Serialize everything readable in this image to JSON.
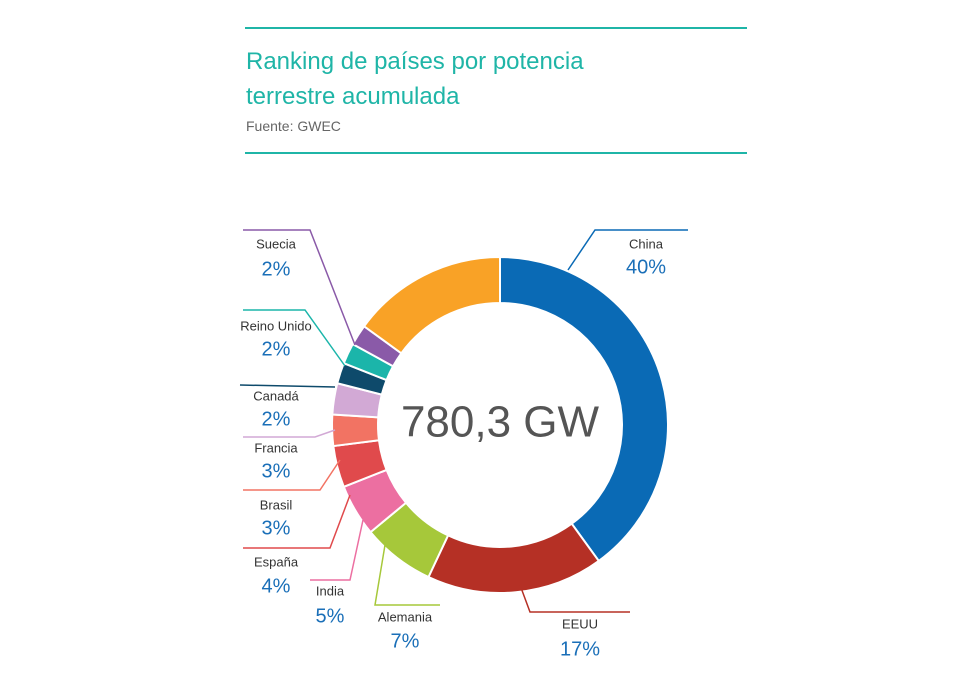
{
  "chart_data": {
    "type": "pie",
    "donut": true,
    "title": "Ranking de países por potencia terrestre acumulada",
    "subtitle": "Fuente: GWEC",
    "center_label": "780,3 GW",
    "categories": [
      "China",
      "EEUU",
      "Alemania",
      "India",
      "España",
      "Brasil",
      "Francia",
      "Canadá",
      "Reino Unido",
      "Suecia",
      null
    ],
    "values": [
      40,
      17,
      7,
      5,
      4,
      3,
      3,
      2,
      2,
      2,
      15
    ],
    "value_labels": [
      "40%",
      "17%",
      "7%",
      "5%",
      "4%",
      "3%",
      "3%",
      "2%",
      "2%",
      "2%",
      null
    ],
    "colors": [
      "#0a6ab5",
      "#b53025",
      "#a6c83a",
      "#ec6fa1",
      "#e04a4c",
      "#f27363",
      "#d2a9d5",
      "#0e4a6b",
      "#1bb5aa",
      "#8a5aa8",
      "#f9a226"
    ]
  }
}
